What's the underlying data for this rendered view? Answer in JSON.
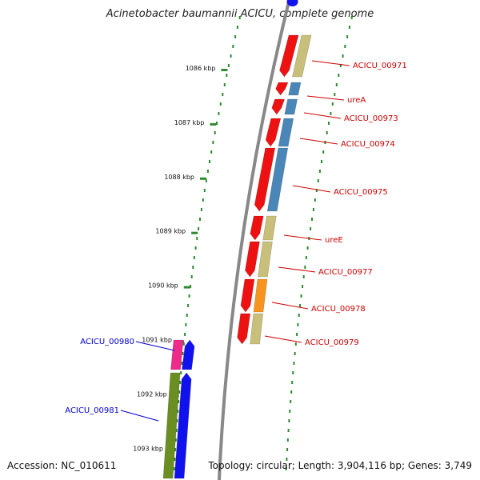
{
  "title": "Acinetobacter baumannii ACICU, complete genome",
  "footer": {
    "accession": "Accession: NC_010611",
    "summary": "Topology: circular; Length: 3,904,116 bp; Genes: 3,749"
  },
  "ruler": {
    "unit": "kbp",
    "ticks": [
      {
        "kbp": 1086,
        "label": "1086 kbp"
      },
      {
        "kbp": 1087,
        "label": "1087 kbp"
      },
      {
        "kbp": 1088,
        "label": "1088 kbp"
      },
      {
        "kbp": 1089,
        "label": "1089 kbp"
      },
      {
        "kbp": 1090,
        "label": "1090 kbp"
      },
      {
        "kbp": 1091,
        "label": "1091 kbp"
      },
      {
        "kbp": 1092,
        "label": "1092 kbp"
      },
      {
        "kbp": 1093,
        "label": "1093 kbp"
      }
    ]
  },
  "colors": {
    "gene_reverse": "#ee1111",
    "gene_forward": "#1111ee",
    "label_reverse": "#cc0000",
    "label_forward": "#0000cc",
    "cog_khaki": "#c8c07a",
    "cog_steelblue": "#4a86b8",
    "cog_orange": "#f7941d",
    "cog_pink": "#ee2a8a",
    "cog_olive": "#6b8e23",
    "backbone": "#888888",
    "ruler": "#2e8b2e"
  },
  "genes": [
    {
      "name": "ACICU_00971",
      "strand": "reverse",
      "cog": "khaki"
    },
    {
      "name": "ureA",
      "strand": "reverse",
      "cog": "steelblue"
    },
    {
      "name": "ACICU_00973",
      "strand": "reverse",
      "cog": "steelblue"
    },
    {
      "name": "ACICU_00974",
      "strand": "reverse",
      "cog": "steelblue"
    },
    {
      "name": "ACICU_00975",
      "strand": "reverse",
      "cog": "steelblue"
    },
    {
      "name": "ureE",
      "strand": "reverse",
      "cog": "khaki"
    },
    {
      "name": "ACICU_00977",
      "strand": "reverse",
      "cog": "khaki"
    },
    {
      "name": "ACICU_00978",
      "strand": "reverse",
      "cog": "orange"
    },
    {
      "name": "ACICU_00979",
      "strand": "reverse",
      "cog": "khaki"
    },
    {
      "name": "ACICU_00980",
      "strand": "forward",
      "cog": "pink"
    },
    {
      "name": "ACICU_00981",
      "strand": "forward",
      "cog": "olive"
    }
  ]
}
